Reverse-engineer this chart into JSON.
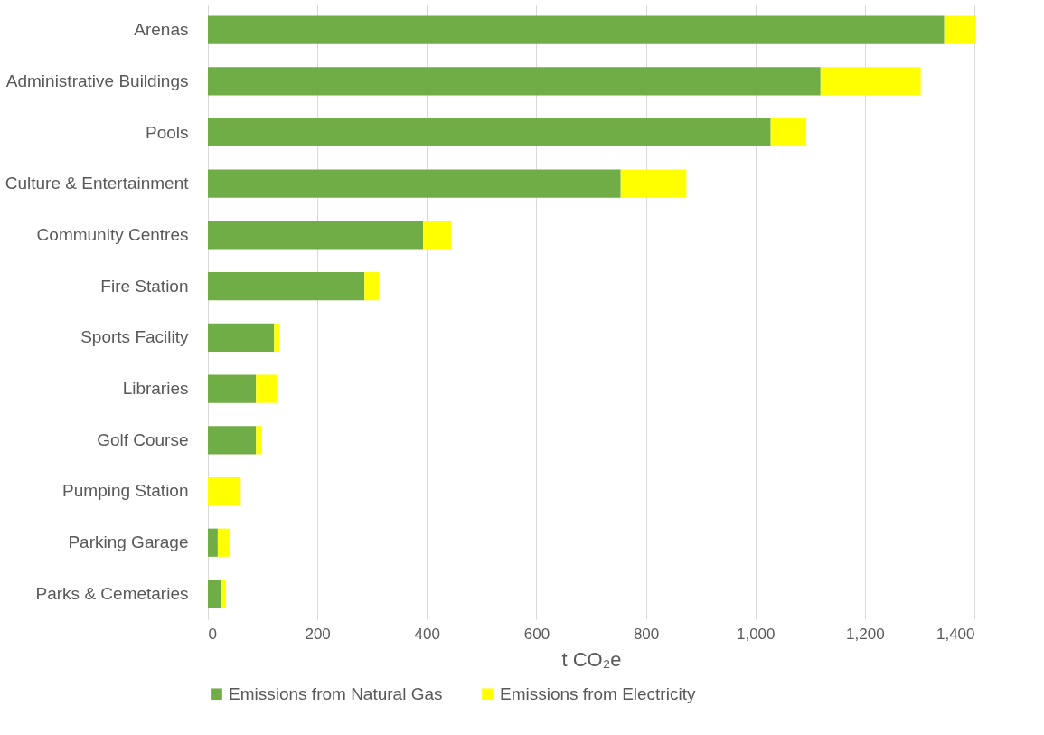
{
  "chart_data": {
    "type": "bar",
    "orientation": "horizontal",
    "stacked": true,
    "categories": [
      "Arenas",
      "Administrative Buildings",
      "Pools",
      "Culture & Entertainment",
      "Community Centres",
      "Fire Station",
      "Sports Facility",
      "Libraries",
      "Golf Course",
      "Pumping Station",
      "Parking Garage",
      "Parks & Cemetaries"
    ],
    "series": [
      {
        "name": "Emissions from Natural Gas",
        "color": "#70ad47",
        "values": [
          1345,
          1119,
          1028,
          754,
          393,
          286,
          121,
          88,
          88,
          0,
          18,
          25
        ]
      },
      {
        "name": "Emissions from Electricity",
        "color": "#ffff00",
        "values": [
          58,
          183,
          65,
          120,
          52,
          26,
          10,
          39,
          11,
          60,
          22,
          8
        ]
      }
    ],
    "xlabel": "t CO₂e",
    "xlim": [
      0,
      1400
    ],
    "xticks": [
      0,
      200,
      400,
      600,
      800,
      {
        "value": 1000,
        "label": "1,000"
      },
      {
        "value": 1200,
        "label": "1,200"
      },
      {
        "value": 1400,
        "label": "1,400"
      }
    ],
    "grid": "x",
    "legend": "bottom"
  }
}
